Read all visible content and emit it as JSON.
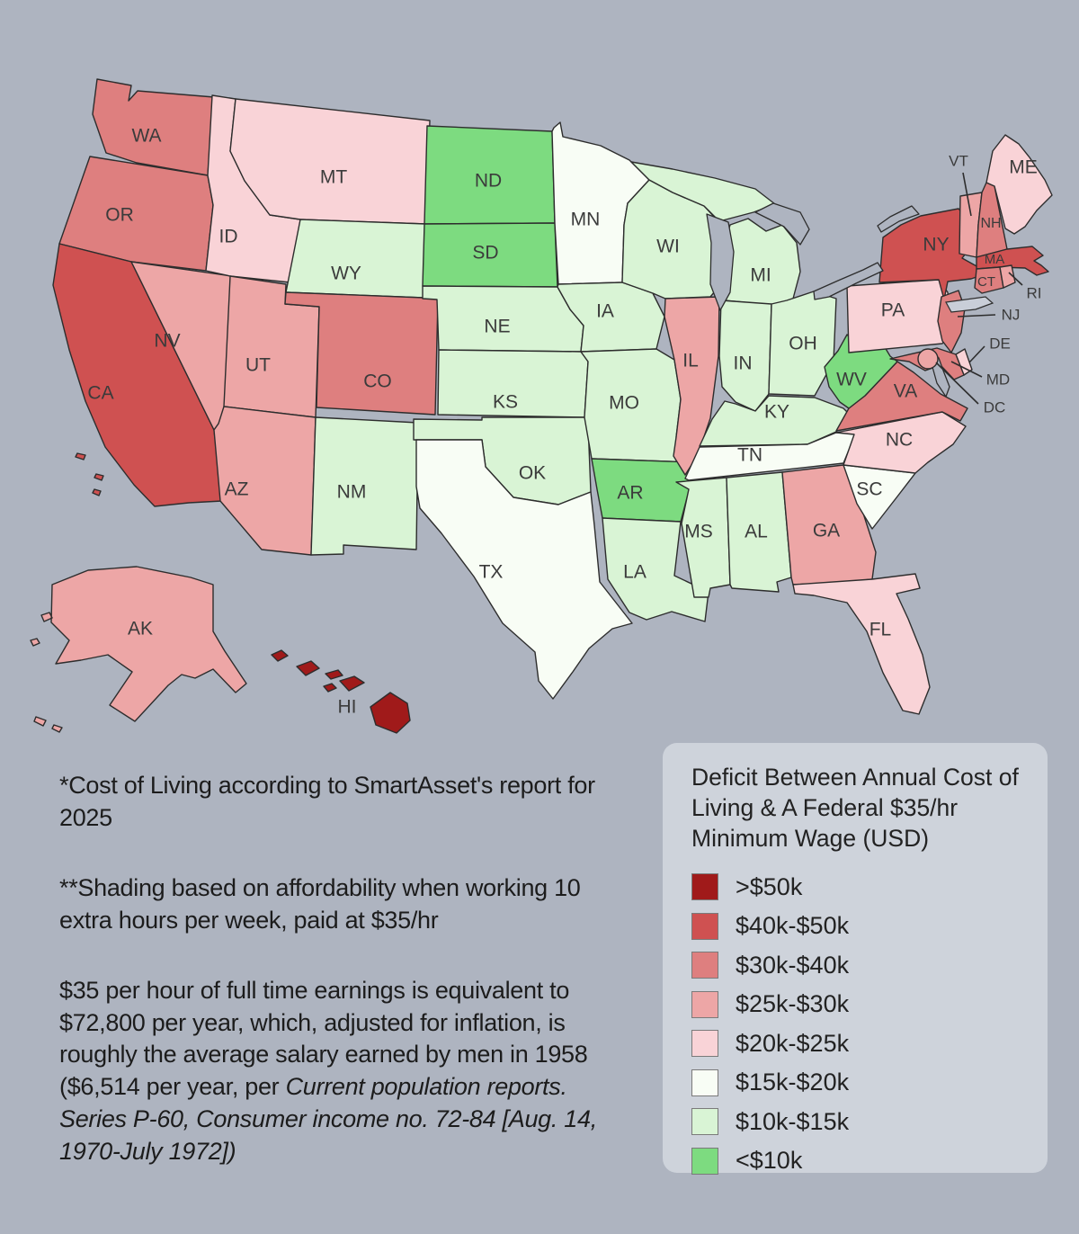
{
  "page": {
    "background": "#aeb4c0"
  },
  "map": {
    "stroke_color": "#2d2d2d",
    "label_color": "#3b3b3b",
    "water_fill": "#aeb4c0",
    "island_fill": "#c9ced8",
    "states": [
      {
        "id": "WA",
        "label": "WA",
        "category": "$30k-$40k"
      },
      {
        "id": "OR",
        "label": "OR",
        "category": "$30k-$40k"
      },
      {
        "id": "CA",
        "label": "CA",
        "category": "$40k-$50k"
      },
      {
        "id": "NV",
        "label": "NV",
        "category": "$25k-$30k"
      },
      {
        "id": "ID",
        "label": "ID",
        "category": "$20k-$25k"
      },
      {
        "id": "MT",
        "label": "MT",
        "category": "$20k-$25k"
      },
      {
        "id": "WY",
        "label": "WY",
        "category": "$10k-$15k"
      },
      {
        "id": "UT",
        "label": "UT",
        "category": "$25k-$30k"
      },
      {
        "id": "CO",
        "label": "CO",
        "category": "$30k-$40k"
      },
      {
        "id": "AZ",
        "label": "AZ",
        "category": "$25k-$30k"
      },
      {
        "id": "NM",
        "label": "NM",
        "category": "$10k-$15k"
      },
      {
        "id": "ND",
        "label": "ND",
        "category": "<$10k"
      },
      {
        "id": "SD",
        "label": "SD",
        "category": "<$10k"
      },
      {
        "id": "NE",
        "label": "NE",
        "category": "$10k-$15k"
      },
      {
        "id": "KS",
        "label": "KS",
        "category": "$10k-$15k"
      },
      {
        "id": "OK",
        "label": "OK",
        "category": "$10k-$15k"
      },
      {
        "id": "TX",
        "label": "TX",
        "category": "$15k-$20k"
      },
      {
        "id": "MN",
        "label": "MN",
        "category": "$15k-$20k"
      },
      {
        "id": "IA",
        "label": "IA",
        "category": "$10k-$15k"
      },
      {
        "id": "MO",
        "label": "MO",
        "category": "$10k-$15k"
      },
      {
        "id": "AR",
        "label": "AR",
        "category": "<$10k"
      },
      {
        "id": "LA",
        "label": "LA",
        "category": "$10k-$15k"
      },
      {
        "id": "WI",
        "label": "WI",
        "category": "$10k-$15k"
      },
      {
        "id": "MI",
        "label": "MI",
        "category": "$10k-$15k"
      },
      {
        "id": "IL",
        "label": "IL",
        "category": "$25k-$30k"
      },
      {
        "id": "IN",
        "label": "IN",
        "category": "$10k-$15k"
      },
      {
        "id": "OH",
        "label": "OH",
        "category": "$10k-$15k"
      },
      {
        "id": "KY",
        "label": "KY",
        "category": "$10k-$15k"
      },
      {
        "id": "TN",
        "label": "TN",
        "category": "$15k-$20k"
      },
      {
        "id": "MS",
        "label": "MS",
        "category": "$10k-$15k"
      },
      {
        "id": "AL",
        "label": "AL",
        "category": "$10k-$15k"
      },
      {
        "id": "GA",
        "label": "GA",
        "category": "$25k-$30k"
      },
      {
        "id": "FL",
        "label": "FL",
        "category": "$20k-$25k"
      },
      {
        "id": "SC",
        "label": "SC",
        "category": "$15k-$20k"
      },
      {
        "id": "NC",
        "label": "NC",
        "category": "$20k-$25k"
      },
      {
        "id": "VA",
        "label": "VA",
        "category": "$30k-$40k"
      },
      {
        "id": "WV",
        "label": "WV",
        "category": "<$10k"
      },
      {
        "id": "PA",
        "label": "PA",
        "category": "$20k-$25k"
      },
      {
        "id": "NY",
        "label": "NY",
        "category": "$40k-$50k"
      },
      {
        "id": "NJ",
        "label": "NJ",
        "category": "$30k-$40k"
      },
      {
        "id": "DE",
        "label": "DE",
        "category": "$20k-$25k"
      },
      {
        "id": "MD",
        "label": "MD",
        "category": "$30k-$40k"
      },
      {
        "id": "DC",
        "label": "DC",
        "category": "$25k-$30k"
      },
      {
        "id": "VT",
        "label": "VT",
        "category": "$25k-$30k"
      },
      {
        "id": "NH",
        "label": "NH",
        "category": "$30k-$40k"
      },
      {
        "id": "MA",
        "label": "MA",
        "category": "$40k-$50k"
      },
      {
        "id": "CT",
        "label": "CT",
        "category": "$30k-$40k"
      },
      {
        "id": "RI",
        "label": "RI",
        "category": "$25k-$30k"
      },
      {
        "id": "ME",
        "label": "ME",
        "category": "$20k-$25k"
      },
      {
        "id": "AK",
        "label": "AK",
        "category": "$25k-$30k"
      },
      {
        "id": "HI",
        "label": "HI",
        "category": ">$50k"
      }
    ]
  },
  "legend": {
    "title": "Deficit Between Annual Cost of Living & A Federal $35/hr Minimum Wage (USD)",
    "background": "#ced3db",
    "items": [
      {
        "label": ">$50k",
        "color": "#a01a1a"
      },
      {
        "label": "$40k-$50k",
        "color": "#cf5151"
      },
      {
        "label": "$30k-$40k",
        "color": "#de7f7f"
      },
      {
        "label": "$25k-$30k",
        "color": "#eda6a6"
      },
      {
        "label": "$20k-$25k",
        "color": "#f9d3d7"
      },
      {
        "label": "$15k-$20k",
        "color": "#f8fdf5"
      },
      {
        "label": "$10k-$15k",
        "color": "#d9f4d5"
      },
      {
        "label": "<$10k",
        "color": "#7ddb80"
      }
    ]
  },
  "notes": {
    "p1": "*Cost of Living according to SmartAsset's report for 2025",
    "p2": "**Shading based on affordability when working 10 extra hours per week, paid at $35/hr",
    "p3_regular": "$35 per hour of full time earnings is equivalent to $72,800 per year, which, adjusted for inflation, is roughly the average salary earned by men in 1958 ($6,514 per year, per ",
    "p3_italic": "Current population reports. Series P-60, Consumer income no. 72-84 [Aug. 14, 1970-July 1972])"
  }
}
